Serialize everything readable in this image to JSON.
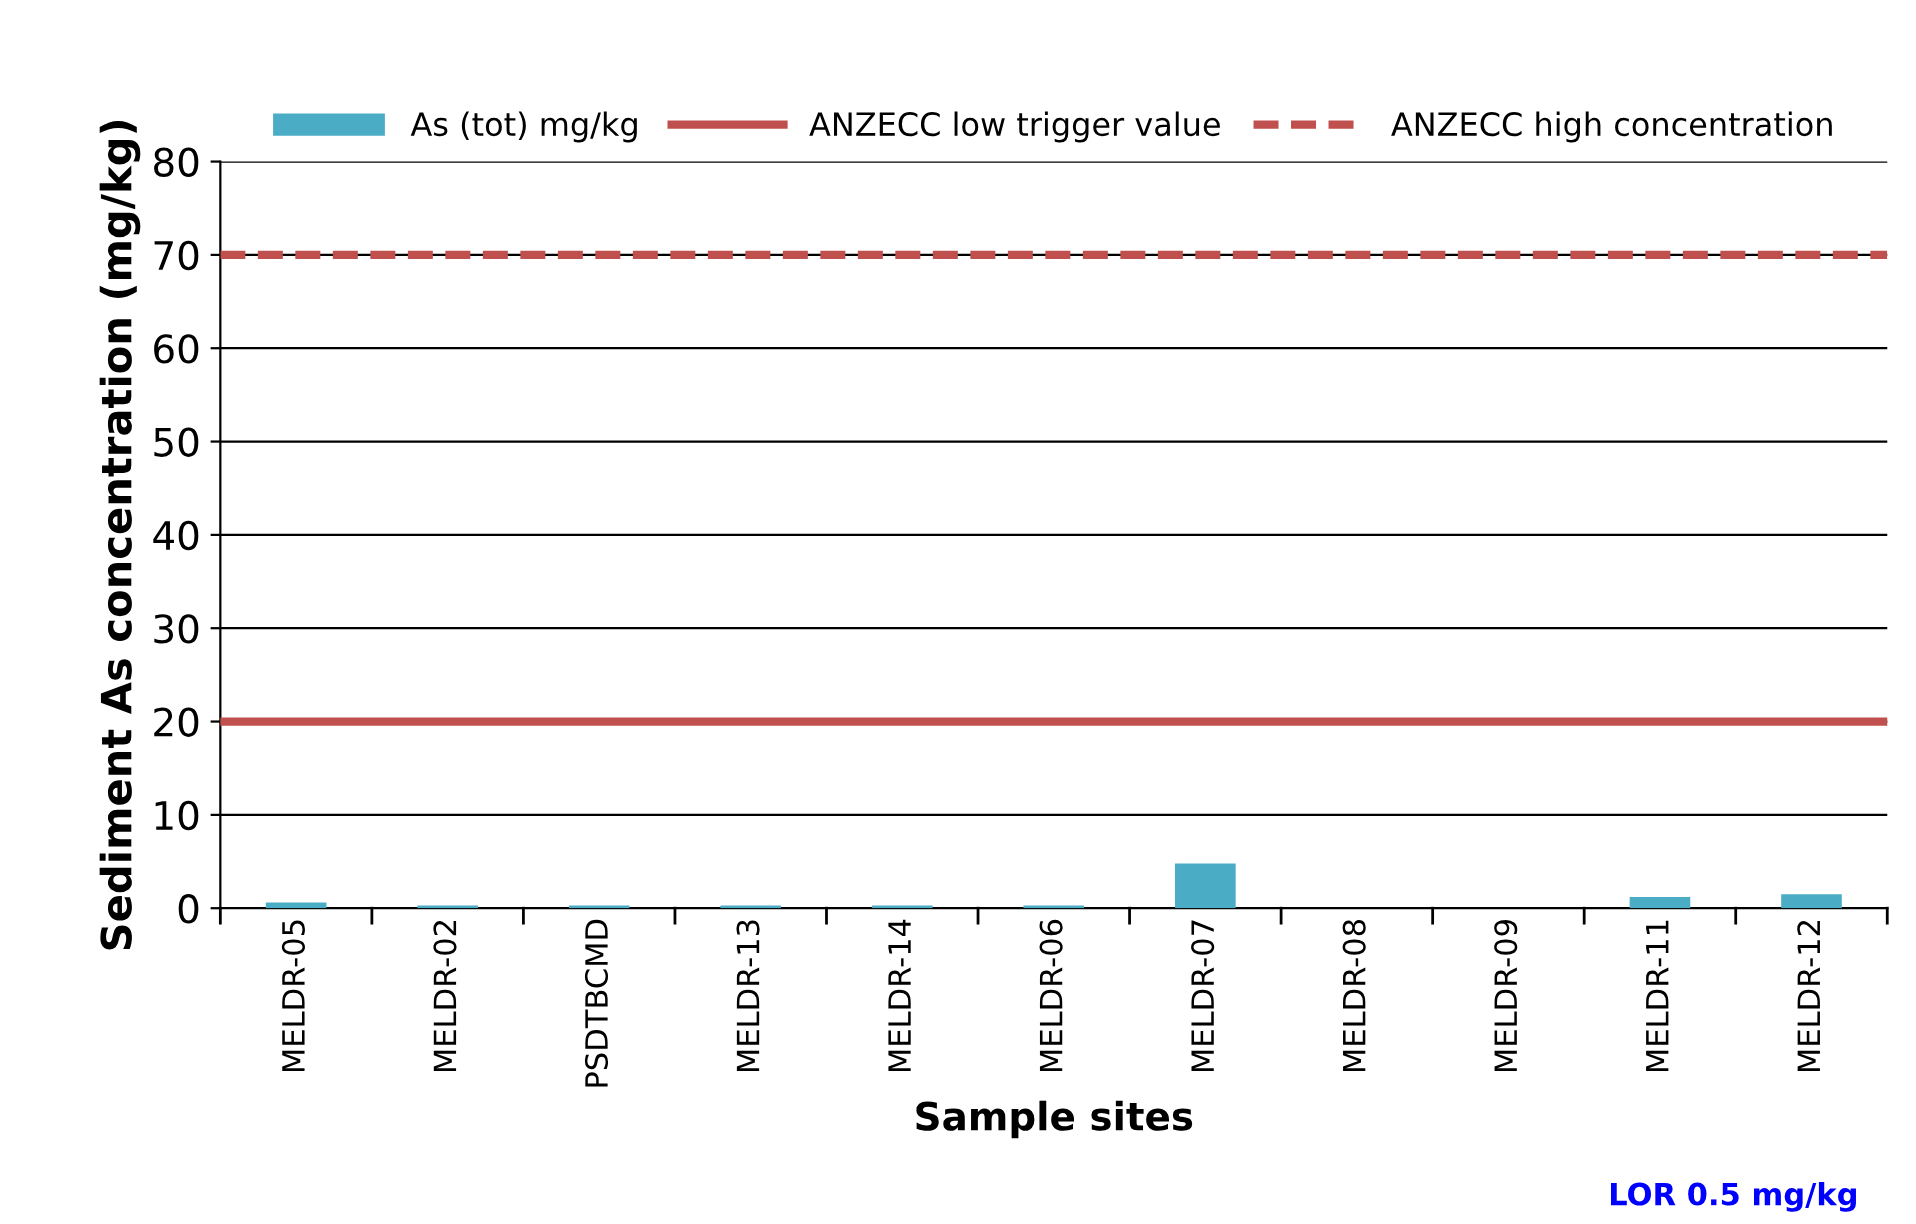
{
  "chart_data": {
    "type": "bar",
    "xlabel": "Sample sites",
    "ylabel": "Sediment As concentration (mg/kg)",
    "categories": [
      "MELDR-05",
      "MELDR-02",
      "PSDTBCMD",
      "MELDR-13",
      "MELDR-14",
      "MELDR-06",
      "MELDR-07",
      "MELDR-08",
      "MELDR-09",
      "MELDR-11",
      "MELDR-12"
    ],
    "series": [
      {
        "name": "As (tot) mg/kg",
        "color": "#4bacc6",
        "values": [
          0.6,
          0.3,
          0.3,
          0.3,
          0.3,
          0.3,
          4.8,
          null,
          null,
          1.2,
          1.5
        ]
      }
    ],
    "ref_lines": [
      {
        "axis": "y",
        "value": 20,
        "label": "ANZECC low trigger value",
        "color": "#c0504d",
        "line_style": "solid"
      },
      {
        "axis": "y",
        "value": 70,
        "label": "ANZECC high concentration",
        "color": "#c0504d",
        "line_style": "dashed"
      }
    ],
    "ylim": [
      0,
      80
    ],
    "yticks": [
      0,
      10,
      20,
      30,
      40,
      50,
      60,
      70,
      80
    ],
    "grid": "y",
    "legend": "top",
    "annotations": [
      "LOR 0.5 mg/kg"
    ]
  }
}
